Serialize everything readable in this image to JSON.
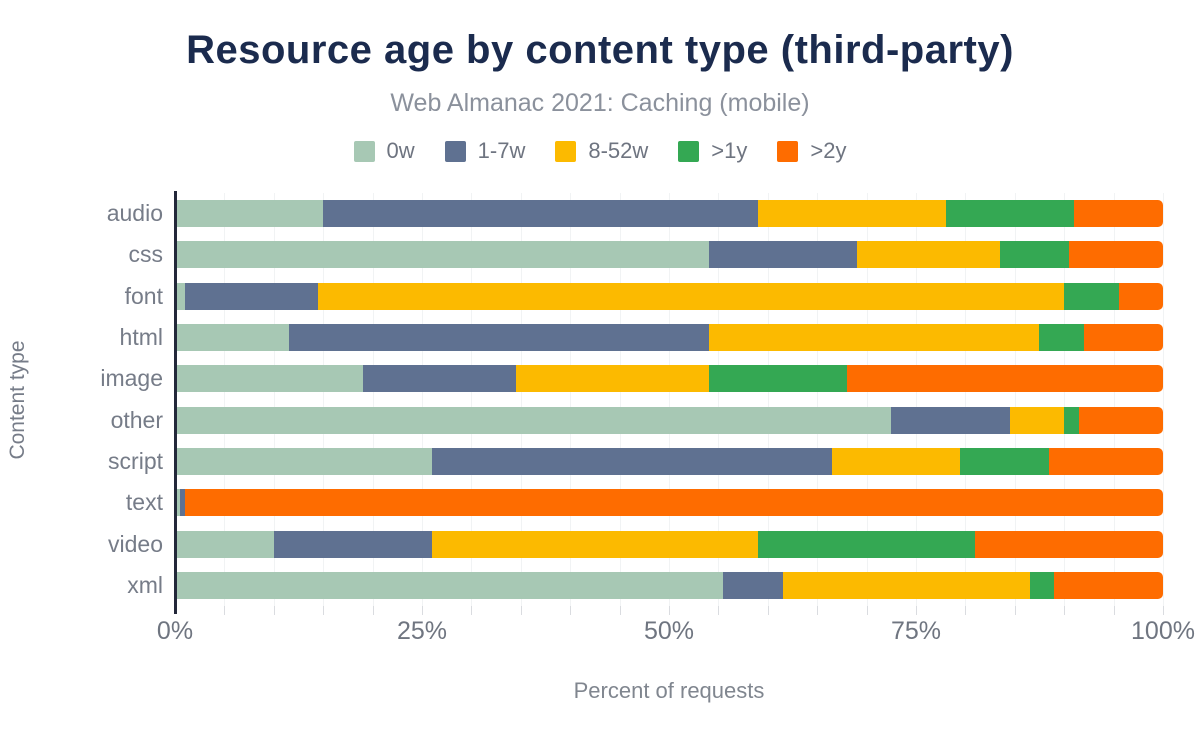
{
  "title": "Resource age by content type (third-party)",
  "subtitle": "Web Almanac 2021: Caching (mobile)",
  "x_axis_title": "Percent of requests",
  "y_axis_title": "Content type",
  "colors": {
    "title": "#1b2b4e",
    "subtitle": "#8b919c",
    "axis_line": "#23283a",
    "tick_text": "#6f7580",
    "gridline": "#f1f3f4"
  },
  "chart_data": {
    "type": "bar",
    "stacked": true,
    "orientation": "horizontal",
    "title": "Resource age by content type (third-party)",
    "subtitle": "Web Almanac 2021: Caching (mobile)",
    "xlabel": "Percent of requests",
    "ylabel": "Content type",
    "xlim": [
      0,
      100
    ],
    "x_tick_values": [
      0,
      25,
      50,
      75,
      100
    ],
    "x_tick_labels": [
      "0%",
      "25%",
      "50%",
      "75%",
      "100%"
    ],
    "minor_grid_step_percent": 5,
    "legend_position": "top",
    "categories": [
      "audio",
      "css",
      "font",
      "html",
      "image",
      "other",
      "script",
      "text",
      "video",
      "xml"
    ],
    "series": [
      {
        "name": "0w",
        "color": "#a7c8b4",
        "values": [
          15,
          54,
          1,
          11.5,
          19,
          72.5,
          26,
          0.5,
          10,
          55.5
        ]
      },
      {
        "name": "1-7w",
        "color": "#5f7191",
        "values": [
          44,
          15,
          13.5,
          42.5,
          15.5,
          12,
          40.5,
          0.5,
          16,
          6
        ]
      },
      {
        "name": "8-52w",
        "color": "#fcba00",
        "values": [
          19,
          14.5,
          75.5,
          33.5,
          19.5,
          5.5,
          13,
          0,
          33,
          25
        ]
      },
      {
        "name": ">1y",
        "color": "#34a853",
        "values": [
          13,
          7,
          5.5,
          4.5,
          14,
          1.5,
          9,
          0,
          22,
          2.5
        ]
      },
      {
        "name": ">2y",
        "color": "#fe6c00",
        "values": [
          9,
          9.5,
          4.5,
          8,
          32,
          8.5,
          11.5,
          99,
          19,
          11
        ]
      }
    ]
  }
}
